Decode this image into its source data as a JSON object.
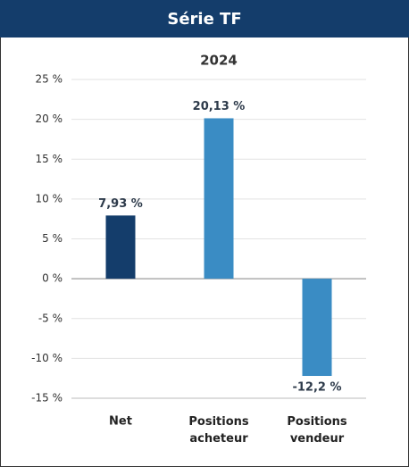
{
  "chart_data": {
    "type": "bar",
    "header": "Série TF",
    "title": "2024",
    "categories": [
      "Net",
      "Positions acheteur",
      "Positions vendeur"
    ],
    "values": [
      7.93,
      20.13,
      -12.2
    ],
    "value_labels": [
      "7,93 %",
      "20,13 %",
      "-12,2 %"
    ],
    "colors": [
      "#143d6b",
      "#3a8cc4",
      "#3a8cc4"
    ],
    "ylim": [
      -15,
      25
    ],
    "yticks": [
      {
        "value": -15,
        "label": "-15 %"
      },
      {
        "value": -10,
        "label": "-10 %"
      },
      {
        "value": -5,
        "label": "-5 %"
      },
      {
        "value": 0,
        "label": "0 %"
      },
      {
        "value": 5,
        "label": "5 %"
      },
      {
        "value": 10,
        "label": "10 %"
      },
      {
        "value": 15,
        "label": "15 %"
      },
      {
        "value": 20,
        "label": "20 %"
      },
      {
        "value": 25,
        "label": "25 %"
      }
    ],
    "grid": true
  }
}
